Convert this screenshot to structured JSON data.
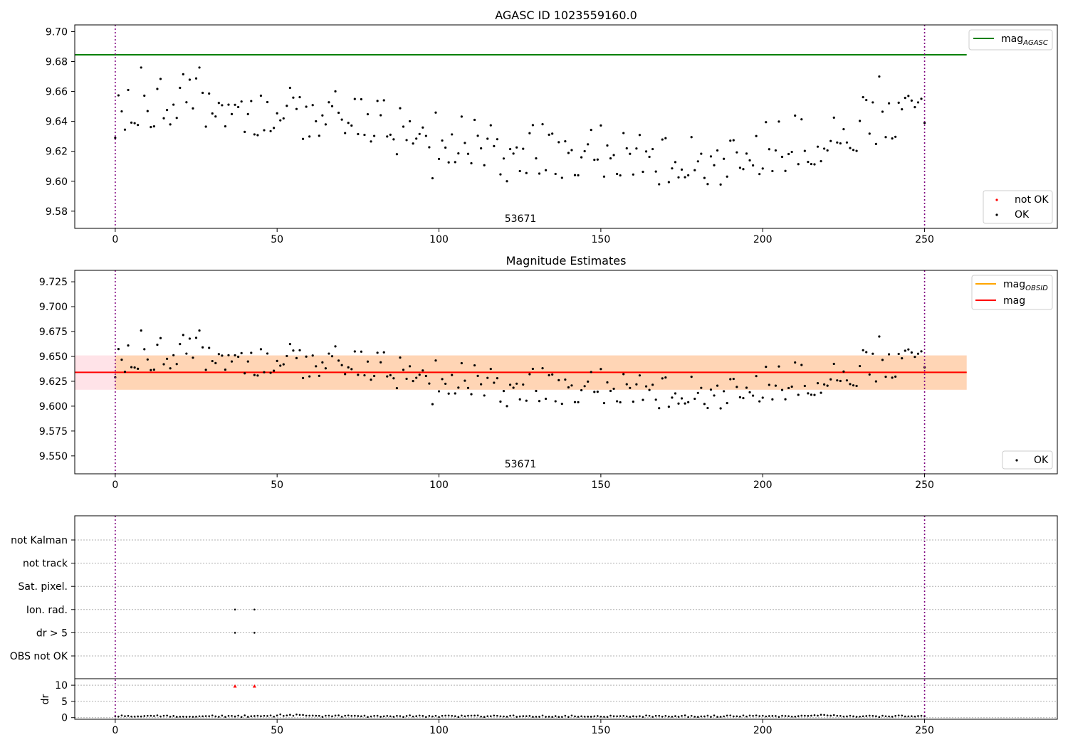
{
  "chart_data": [
    {
      "type": "scatter",
      "title": "AGASC ID 1023559160.0",
      "xlim": [
        -12.5,
        291
      ],
      "ylim": [
        9.5685,
        9.7045
      ],
      "xticks": [
        "0",
        "50",
        "100",
        "150",
        "200",
        "250"
      ],
      "yticks": [
        "9.58",
        "9.60",
        "9.62",
        "9.64",
        "9.66",
        "9.68",
        "9.70"
      ],
      "annotation": "53671",
      "obs_boundaries": [
        0,
        250
      ],
      "lines": [
        {
          "name": "mag_AGASC",
          "label_main": "mag",
          "label_sub": "AGASC",
          "y": 9.6845,
          "x_range": [
            -12.5,
            263
          ],
          "color": "#008000"
        }
      ],
      "legend_lines": {
        "position": "top-right"
      },
      "legend_points": {
        "position": "lower-right",
        "items": [
          {
            "label": "not OK",
            "color": "#ff0000"
          },
          {
            "label": "OK",
            "color": "#000000"
          }
        ]
      }
    },
    {
      "type": "scatter",
      "title": "Magnitude Estimates",
      "xlim": [
        -12.5,
        291
      ],
      "ylim": [
        9.532,
        9.7365
      ],
      "xticks": [
        "0",
        "50",
        "100",
        "150",
        "200",
        "250"
      ],
      "yticks": [
        "9.550",
        "9.575",
        "9.600",
        "9.625",
        "9.650",
        "9.675",
        "9.700",
        "9.725"
      ],
      "annotation": "53671",
      "obs_boundaries": [
        0,
        250
      ],
      "bands": [
        {
          "name": "mag band",
          "y": [
            9.6165,
            9.651
          ],
          "x_range": [
            -12.5,
            263
          ],
          "color": "#ffc0cb",
          "opacity": 0.45
        },
        {
          "name": "mag_OBSID band",
          "y": [
            9.6165,
            9.651
          ],
          "x_range": [
            0,
            263
          ],
          "color": "#ffa500",
          "opacity": 0.22
        }
      ],
      "lines": [
        {
          "name": "mag_OBSID",
          "label_main": "mag",
          "label_sub": "OBSID",
          "y": 9.634,
          "x_range": [
            0,
            263
          ],
          "color": "#ffa500"
        },
        {
          "name": "mag",
          "label_main": "mag",
          "label_sub": "",
          "y": 9.634,
          "x_range": [
            -12.5,
            263
          ],
          "color": "#ff0000"
        }
      ],
      "legend_lines": {
        "position": "top-right"
      },
      "legend_points": {
        "position": "lower-right",
        "items": [
          {
            "label": "OK",
            "color": "#000000"
          }
        ]
      }
    },
    {
      "type": "scatter",
      "title": "",
      "xlim": [
        -12.5,
        291
      ],
      "xticks": [
        "0",
        "50",
        "100",
        "150",
        "200",
        "250"
      ],
      "obs_boundaries": [
        0,
        250
      ],
      "flag_categories": [
        "not Kalman",
        "not track",
        "Sat. pixel.",
        "Ion. rad.",
        "dr > 5",
        "OBS not OK"
      ],
      "flag_points": [
        {
          "category": "Ion. rad.",
          "x": [
            37,
            43
          ]
        },
        {
          "category": "dr > 5",
          "x": [
            37,
            43
          ]
        }
      ],
      "dr": {
        "ylabel": "dr",
        "ylim": [
          -0.5,
          12
        ],
        "yticks": [
          "0",
          "5",
          "10"
        ],
        "outliers": [
          {
            "x": 37,
            "y": 9.7
          },
          {
            "x": 43,
            "y": 9.7
          }
        ]
      }
    }
  ]
}
